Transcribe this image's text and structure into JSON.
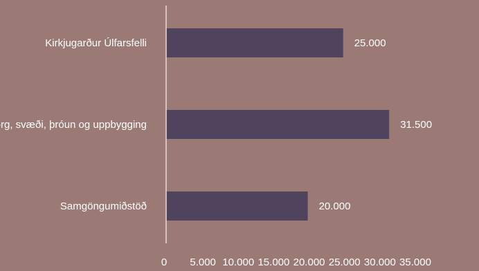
{
  "colors": {
    "background": "#9b7a76",
    "bar": "#4f435d",
    "axis": "#e8dedc",
    "text": "#ffffff"
  },
  "chart_data": {
    "type": "bar",
    "orientation": "horizontal",
    "categories": [
      "Kirkjugarður Úlfarsfelli",
      "Miðborg, svæði, þróun og uppbygging",
      "Samgöngumiðstöð"
    ],
    "values": [
      25000,
      31500,
      20000
    ],
    "data_labels": [
      "25.000",
      "31.500",
      "20.000"
    ],
    "xlim": [
      0,
      35000
    ],
    "x_ticks": [
      0,
      5000,
      10000,
      15000,
      20000,
      25000,
      30000,
      35000
    ],
    "x_tick_labels": [
      "0",
      "5.000",
      "10.000",
      "15.000",
      "20.000",
      "25.000",
      "30.000",
      "35.000"
    ],
    "grid": false,
    "legend": "none"
  }
}
